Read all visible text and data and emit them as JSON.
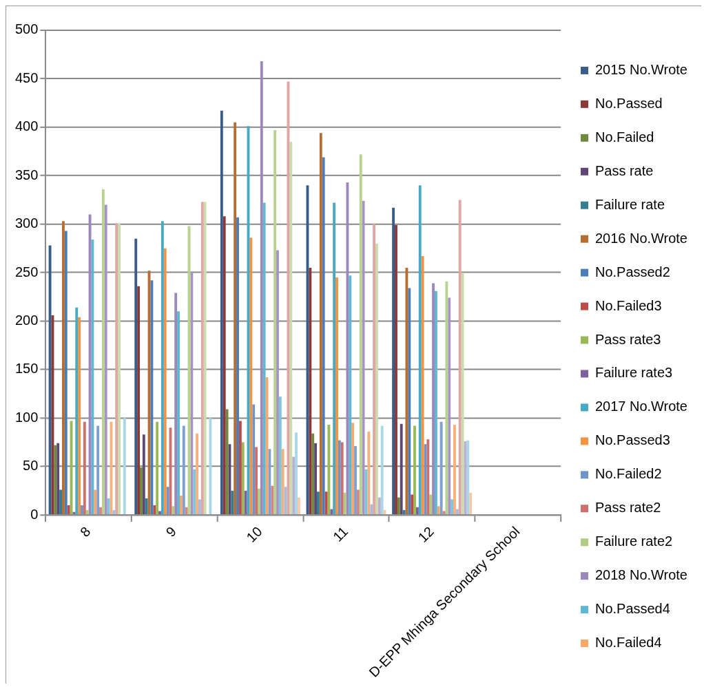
{
  "chart_data": {
    "type": "bar",
    "categories": [
      "8",
      "9",
      "10",
      "11",
      "12",
      "D-EPP Mhinga Secondary School"
    ],
    "ylim": [
      0,
      500
    ],
    "yticks": [
      0,
      50,
      100,
      150,
      200,
      250,
      300,
      350,
      400,
      450,
      500
    ],
    "grid": "y",
    "legend": "right",
    "series": [
      {
        "name": "2015 No.Wrote",
        "color": "#385d8a",
        "values": [
          278,
          285,
          417,
          340,
          317,
          0
        ]
      },
      {
        "name": "No.Passed",
        "color": "#8c3836",
        "values": [
          206,
          236,
          308,
          255,
          299,
          0
        ]
      },
      {
        "name": "No.Failed",
        "color": "#71893f",
        "values": [
          72,
          49,
          109,
          84,
          18,
          0
        ]
      },
      {
        "name": "Pass rate",
        "color": "#5c4776",
        "values": [
          74,
          83,
          73,
          74,
          94,
          0
        ]
      },
      {
        "name": "Failure rate",
        "color": "#357d91",
        "values": [
          26,
          17,
          25,
          24,
          5,
          0
        ]
      },
      {
        "name": "2016 No.Wrote",
        "color": "#b66d31",
        "values": [
          303,
          252,
          405,
          394,
          255,
          0
        ]
      },
      {
        "name": "No.Passed2",
        "color": "#4a7ebb",
        "values": [
          293,
          242,
          307,
          369,
          234,
          0
        ]
      },
      {
        "name": "No.Failed3",
        "color": "#be4b48",
        "values": [
          10,
          10,
          97,
          24,
          21,
          0
        ]
      },
      {
        "name": "Pass rate3",
        "color": "#98b954",
        "values": [
          97,
          96,
          75,
          93,
          92,
          0
        ]
      },
      {
        "name": "Failure rate3",
        "color": "#7d60a0",
        "values": [
          3,
          4,
          25,
          6,
          8,
          0
        ]
      },
      {
        "name": "2017 No.Wrote",
        "color": "#46aac5",
        "values": [
          214,
          303,
          401,
          322,
          340,
          0
        ]
      },
      {
        "name": "No.Passed3",
        "color": "#f69240",
        "values": [
          204,
          275,
          286,
          245,
          267,
          0
        ]
      },
      {
        "name": "No.Failed2",
        "color": "#6f94cc",
        "values": [
          10,
          29,
          114,
          77,
          73,
          0
        ]
      },
      {
        "name": "Pass rate2",
        "color": "#cf6f6c",
        "values": [
          96,
          90,
          70,
          75,
          78,
          0
        ]
      },
      {
        "name": "Failure rate2",
        "color": "#b0cb82",
        "values": [
          5,
          9,
          27,
          23,
          21,
          0
        ]
      },
      {
        "name": "2018 No.Wrote",
        "color": "#9c87ba",
        "values": [
          310,
          229,
          468,
          343,
          239,
          0
        ]
      },
      {
        "name": "No.Passed4",
        "color": "#5fb8d2",
        "values": [
          284,
          210,
          322,
          247,
          231,
          0
        ]
      },
      {
        "name": "No.Failed4",
        "color": "#f9a86a",
        "values": [
          26,
          20,
          142,
          95,
          9,
          0
        ]
      },
      {
        "color": "#7f9fd2",
        "values": [
          92,
          92,
          68,
          71,
          96,
          0
        ]
      },
      {
        "color": "#d48683",
        "values": [
          8,
          8,
          30,
          26,
          4,
          0
        ]
      },
      {
        "color": "#b9d28f",
        "values": [
          336,
          298,
          397,
          372,
          241,
          0
        ]
      },
      {
        "color": "#a894c4",
        "values": [
          320,
          251,
          273,
          324,
          224,
          0
        ]
      },
      {
        "color": "#7fc6dc",
        "values": [
          17,
          47,
          122,
          47,
          16,
          0
        ]
      },
      {
        "color": "#f9b07c",
        "values": [
          96,
          84,
          68,
          86,
          93,
          0
        ]
      },
      {
        "color": "#a5bde3",
        "values": [
          5,
          16,
          29,
          11,
          6,
          0
        ]
      },
      {
        "color": "#dfa6a4",
        "values": [
          301,
          323,
          447,
          300,
          325,
          0
        ]
      },
      {
        "color": "#cbdcae",
        "values": [
          301,
          323,
          385,
          280,
          250,
          0
        ]
      },
      {
        "color": "#bcafd3",
        "values": [
          0,
          0,
          60,
          18,
          76,
          0
        ]
      },
      {
        "color": "#a9d7e6",
        "values": [
          100,
          100,
          85,
          92,
          77,
          0
        ]
      },
      {
        "color": "#fbc8a4",
        "values": [
          0,
          0,
          18,
          5,
          23,
          0
        ]
      }
    ]
  }
}
